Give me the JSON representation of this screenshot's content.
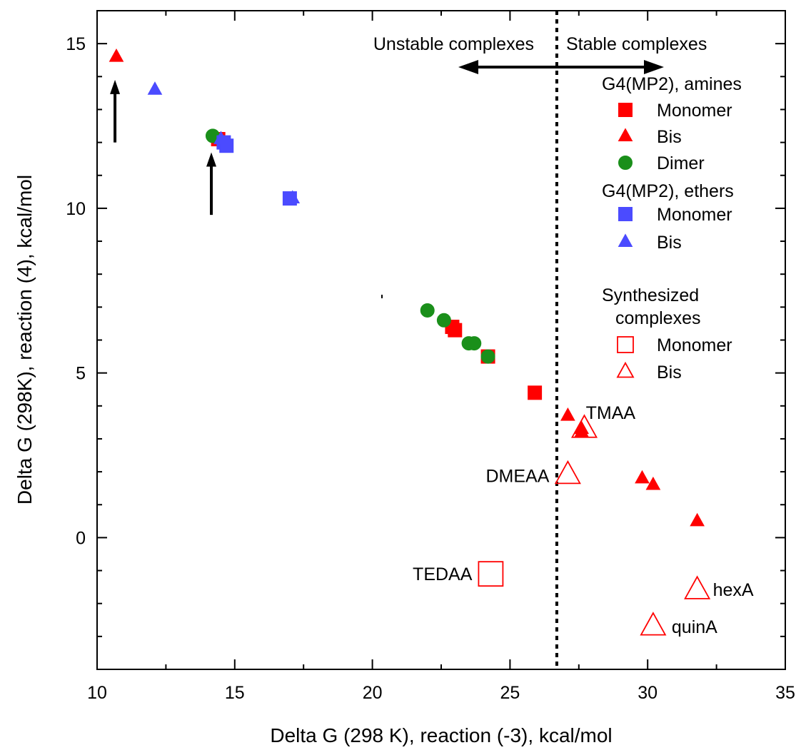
{
  "chart_data": {
    "type": "scatter",
    "title": "",
    "xlabel": "Delta G (298 K), reaction (-3), kcal/mol",
    "ylabel": "Delta G (298K), reaction (4), kcal/mol",
    "xlim": [
      10,
      35
    ],
    "ylim": [
      -4,
      16
    ],
    "xticks": [
      10,
      15,
      20,
      25,
      30,
      35
    ],
    "xtick_labels": [
      "10",
      "15",
      "20",
      "25",
      "30",
      "35"
    ],
    "yticks": [
      0,
      5,
      10,
      15
    ],
    "ytick_labels": [
      "0",
      "5",
      "10",
      "15"
    ],
    "grid": false,
    "divider_x": 26.7,
    "series": [
      {
        "name": "Monomer",
        "group": "G4(MP2), amines",
        "marker": "square",
        "filled": true,
        "color": "#ff0000",
        "points": [
          [
            14.4,
            12.1
          ],
          [
            22.9,
            6.4
          ],
          [
            23.0,
            6.3
          ],
          [
            24.2,
            5.5
          ],
          [
            25.9,
            4.4
          ]
        ]
      },
      {
        "name": "Bis",
        "group": "G4(MP2), amines",
        "marker": "triangle",
        "filled": true,
        "color": "#ff0000",
        "points": [
          [
            10.7,
            14.6
          ],
          [
            27.1,
            3.7
          ],
          [
            27.6,
            3.3
          ],
          [
            27.6,
            3.2
          ],
          [
            29.8,
            1.8
          ],
          [
            30.2,
            1.6
          ],
          [
            31.8,
            0.5
          ]
        ]
      },
      {
        "name": "Dimer",
        "group": "G4(MP2), amines",
        "marker": "circle",
        "filled": true,
        "color": "#1a8f1a",
        "points": [
          [
            14.2,
            12.2
          ],
          [
            22.0,
            6.9
          ],
          [
            22.6,
            6.6
          ],
          [
            23.5,
            5.9
          ],
          [
            23.7,
            5.9
          ],
          [
            24.2,
            5.5
          ]
        ]
      },
      {
        "name": "Monomer",
        "group": "G4(MP2), ethers",
        "marker": "square",
        "filled": true,
        "color": "#4b4bff",
        "points": [
          [
            14.6,
            12.0
          ],
          [
            14.7,
            11.9
          ],
          [
            17.0,
            10.3
          ]
        ]
      },
      {
        "name": "Bis",
        "group": "G4(MP2), ethers",
        "marker": "triangle",
        "filled": true,
        "color": "#4b4bff",
        "points": [
          [
            12.1,
            13.6
          ],
          [
            14.5,
            12.1
          ],
          [
            17.1,
            10.3
          ]
        ]
      },
      {
        "name": "Monomer",
        "group": "Synthesized complexes",
        "marker": "square",
        "filled": false,
        "color": "#ff0000",
        "points": [
          [
            24.3,
            -1.1
          ]
        ]
      },
      {
        "name": "Bis",
        "group": "Synthesized complexes",
        "marker": "triangle",
        "filled": false,
        "color": "#ff0000",
        "points": [
          [
            27.7,
            3.3
          ],
          [
            27.1,
            1.9
          ],
          [
            31.8,
            -1.6
          ],
          [
            30.2,
            -2.7
          ]
        ]
      }
    ],
    "point_labels": [
      {
        "text": "TMAA",
        "x": 27.6,
        "y": 3.3
      },
      {
        "text": "DMEAA",
        "x": 27.1,
        "y": 1.9
      },
      {
        "text": "TEDAA",
        "x": 24.3,
        "y": -1.1
      },
      {
        "text": "hexA",
        "x": 31.8,
        "y": -1.6
      },
      {
        "text": "quinA",
        "x": 30.2,
        "y": -2.7
      }
    ],
    "region_labels": {
      "unstable": "Unstable complexes",
      "stable": "Stable complexes"
    },
    "arrows": [
      {
        "x": 10.65,
        "y_from": 12.0,
        "y_to": 13.9
      },
      {
        "x": 14.15,
        "y_from": 9.8,
        "y_to": 11.7
      }
    ],
    "legend": {
      "placement": "top-right",
      "groups": [
        {
          "title": "G4(MP2), amines",
          "entries": [
            {
              "label": "Monomer",
              "marker": "square",
              "filled": true,
              "color": "#ff0000"
            },
            {
              "label": "Bis",
              "marker": "triangle",
              "filled": true,
              "color": "#ff0000"
            },
            {
              "label": "Dimer",
              "marker": "circle",
              "filled": true,
              "color": "#1a8f1a"
            }
          ]
        },
        {
          "title": "G4(MP2), ethers",
          "entries": [
            {
              "label": "Monomer",
              "marker": "square",
              "filled": true,
              "color": "#4b4bff"
            },
            {
              "label": "Bis",
              "marker": "triangle",
              "filled": true,
              "color": "#4b4bff"
            }
          ]
        },
        {
          "title": "Synthesized complexes",
          "title_lines": [
            "Synthesized",
            "complexes"
          ],
          "entries": [
            {
              "label": "Monomer",
              "marker": "square",
              "filled": false,
              "color": "#ff0000"
            },
            {
              "label": "Bis",
              "marker": "triangle",
              "filled": false,
              "color": "#ff0000"
            }
          ]
        }
      ]
    }
  }
}
